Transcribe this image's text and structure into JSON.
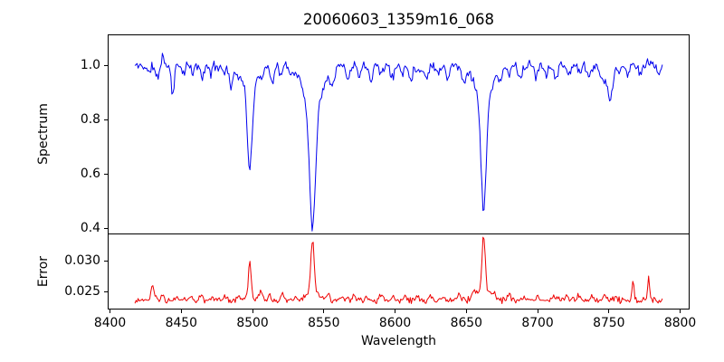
{
  "figure": {
    "title": "20060603_1359m16_068",
    "xlabel": "Wavelength",
    "background": "#ffffff",
    "axis_color": "#000000"
  },
  "chart_data": [
    {
      "type": "line",
      "name": "spectrum-panel",
      "title": "20060603_1359m16_068",
      "ylabel": "Spectrum",
      "line_color": "#0000ee",
      "xlim": [
        8399,
        8806
      ],
      "ylim": [
        0.38,
        1.11
      ],
      "grid": false,
      "yticks": [
        [
          1.0,
          "1.0"
        ],
        [
          0.8,
          "0.8"
        ],
        [
          0.6,
          "0.6"
        ],
        [
          0.4,
          "0.4"
        ]
      ],
      "xticks": [],
      "read_values": {
        "continuum_level": 1.0,
        "absorption_lines": [
          {
            "center": 8498,
            "minimum": 0.61
          },
          {
            "center": 8542,
            "minimum": 0.41
          },
          {
            "center": 8662,
            "minimum": 0.47
          },
          {
            "center": 8750,
            "minimum": 0.85
          }
        ]
      },
      "series_spec": {
        "seed": 11,
        "x_start": 8417.5,
        "x_end": 8787.5,
        "x_step": 0.74,
        "baseline": 0.998,
        "noise": 0.022,
        "features": [
          [
            8498.02,
            -0.3,
            1.6
          ],
          [
            8498.02,
            -0.09,
            4.5
          ],
          [
            8542.09,
            -0.42,
            2.0
          ],
          [
            8542.09,
            -0.17,
            6.0
          ],
          [
            8662.14,
            -0.4,
            1.8
          ],
          [
            8662.14,
            -0.13,
            5.5
          ],
          [
            8427,
            -0.03,
            1.0
          ],
          [
            8433,
            -0.045,
            1.2
          ],
          [
            8437,
            0.055,
            0.6
          ],
          [
            8444,
            -0.105,
            1.0
          ],
          [
            8452,
            -0.028,
            0.9
          ],
          [
            8458,
            -0.032,
            0.9
          ],
          [
            8465,
            -0.045,
            1.1
          ],
          [
            8471,
            -0.028,
            0.9
          ],
          [
            8480,
            -0.03,
            0.9
          ],
          [
            8485,
            -0.085,
            1.1
          ],
          [
            8490,
            -0.04,
            0.9
          ],
          [
            8507,
            -0.03,
            1.0
          ],
          [
            8514,
            -0.055,
            1.3
          ],
          [
            8520,
            -0.035,
            1.0
          ],
          [
            8527,
            -0.03,
            1.0
          ],
          [
            8556,
            -0.06,
            1.3
          ],
          [
            8567,
            -0.05,
            1.2
          ],
          [
            8575,
            -0.028,
            1.0
          ],
          [
            8583,
            -0.045,
            1.1
          ],
          [
            8590,
            -0.028,
            1.0
          ],
          [
            8598,
            -0.045,
            1.3
          ],
          [
            8605,
            -0.028,
            1.0
          ],
          [
            8611,
            -0.05,
            1.2
          ],
          [
            8617,
            -0.03,
            1.0
          ],
          [
            8622,
            -0.05,
            1.2
          ],
          [
            8630,
            -0.028,
            1.0
          ],
          [
            8637,
            -0.045,
            1.1
          ],
          [
            8648,
            -0.06,
            1.3
          ],
          [
            8674,
            -0.055,
            1.2
          ],
          [
            8680,
            -0.035,
            1.0
          ],
          [
            8688,
            -0.05,
            1.2
          ],
          [
            8699,
            -0.04,
            1.1
          ],
          [
            8706,
            -0.028,
            1.0
          ],
          [
            8713,
            -0.045,
            1.2
          ],
          [
            8722,
            -0.03,
            1.0
          ],
          [
            8730,
            -0.03,
            1.0
          ],
          [
            8736,
            -0.048,
            1.2
          ],
          [
            8745,
            -0.04,
            1.5
          ],
          [
            8750,
            -0.085,
            2.8
          ],
          [
            8751,
            -0.05,
            1.0
          ],
          [
            8757,
            -0.03,
            1.0
          ],
          [
            8763,
            -0.035,
            1.0
          ],
          [
            8772,
            -0.035,
            1.0
          ],
          [
            8777,
            0.035,
            0.6
          ],
          [
            8785,
            -0.03,
            1.0
          ]
        ]
      }
    },
    {
      "type": "line",
      "name": "error-panel",
      "ylabel": "Error",
      "xlabel": "Wavelength",
      "line_color": "#ee0000",
      "xlim": [
        8399,
        8806
      ],
      "ylim": [
        0.0222,
        0.0342
      ],
      "grid": false,
      "yticks": [
        [
          0.03,
          "0.030"
        ],
        [
          0.025,
          "0.025"
        ]
      ],
      "xticks": [
        [
          8400,
          "8400"
        ],
        [
          8450,
          "8450"
        ],
        [
          8500,
          "8500"
        ],
        [
          8550,
          "8550"
        ],
        [
          8600,
          "8600"
        ],
        [
          8650,
          "8650"
        ],
        [
          8700,
          "8700"
        ],
        [
          8750,
          "8750"
        ],
        [
          8800,
          "8800"
        ]
      ],
      "read_values": {
        "baseline_level": 0.0235,
        "error_peaks": [
          {
            "center": 8430,
            "peak": 0.0258
          },
          {
            "center": 8498,
            "peak": 0.0296
          },
          {
            "center": 8542,
            "peak": 0.0333
          },
          {
            "center": 8662,
            "peak": 0.0338
          },
          {
            "center": 8767,
            "peak": 0.027
          },
          {
            "center": 8778,
            "peak": 0.0275
          }
        ]
      },
      "series_spec": {
        "seed": 23,
        "x_start": 8417.5,
        "x_end": 8787.5,
        "x_step": 0.74,
        "baseline": 0.02355,
        "noise": 0.0006,
        "features": [
          [
            8498.02,
            0.0054,
            0.9
          ],
          [
            8498.02,
            0.0008,
            3.0
          ],
          [
            8542.09,
            0.0082,
            1.1
          ],
          [
            8542.09,
            0.0016,
            4.0
          ],
          [
            8662.14,
            0.0086,
            1.1
          ],
          [
            8662.14,
            0.0018,
            4.0
          ],
          [
            8430,
            0.0021,
            1.1
          ],
          [
            8437,
            0.0009,
            0.9
          ],
          [
            8447,
            0.0007,
            0.9
          ],
          [
            8457,
            0.0006,
            0.9
          ],
          [
            8464,
            0.0011,
            1.0
          ],
          [
            8472,
            0.0007,
            0.9
          ],
          [
            8481,
            0.0007,
            0.9
          ],
          [
            8490,
            0.0008,
            0.9
          ],
          [
            8506,
            0.0013,
            1.2
          ],
          [
            8512,
            0.0007,
            1.0
          ],
          [
            8521,
            0.0011,
            1.1
          ],
          [
            8530,
            0.0007,
            1.0
          ],
          [
            8553,
            0.001,
            1.0
          ],
          [
            8562,
            0.0006,
            1.0
          ],
          [
            8571,
            0.0007,
            1.0
          ],
          [
            8580,
            0.0006,
            1.0
          ],
          [
            8590,
            0.0008,
            1.0
          ],
          [
            8599,
            0.0007,
            1.0
          ],
          [
            8607,
            0.0009,
            1.0
          ],
          [
            8616,
            0.0006,
            1.0
          ],
          [
            8625,
            0.0007,
            1.0
          ],
          [
            8634,
            0.0007,
            1.0
          ],
          [
            8645,
            0.0009,
            1.2
          ],
          [
            8655,
            0.0012,
            1.5
          ],
          [
            8670,
            0.001,
            1.0
          ],
          [
            8680,
            0.0007,
            1.0
          ],
          [
            8691,
            0.0007,
            1.0
          ],
          [
            8700,
            0.0008,
            1.0
          ],
          [
            8711,
            0.0007,
            1.0
          ],
          [
            8720,
            0.0008,
            1.0
          ],
          [
            8729,
            0.0008,
            1.0
          ],
          [
            8738,
            0.0009,
            1.0
          ],
          [
            8747,
            0.0009,
            1.0
          ],
          [
            8755,
            0.0008,
            1.0
          ],
          [
            8767,
            0.0031,
            0.7
          ],
          [
            8778,
            0.0036,
            0.7
          ],
          [
            8785,
            -0.0004,
            1.0
          ]
        ]
      }
    }
  ]
}
